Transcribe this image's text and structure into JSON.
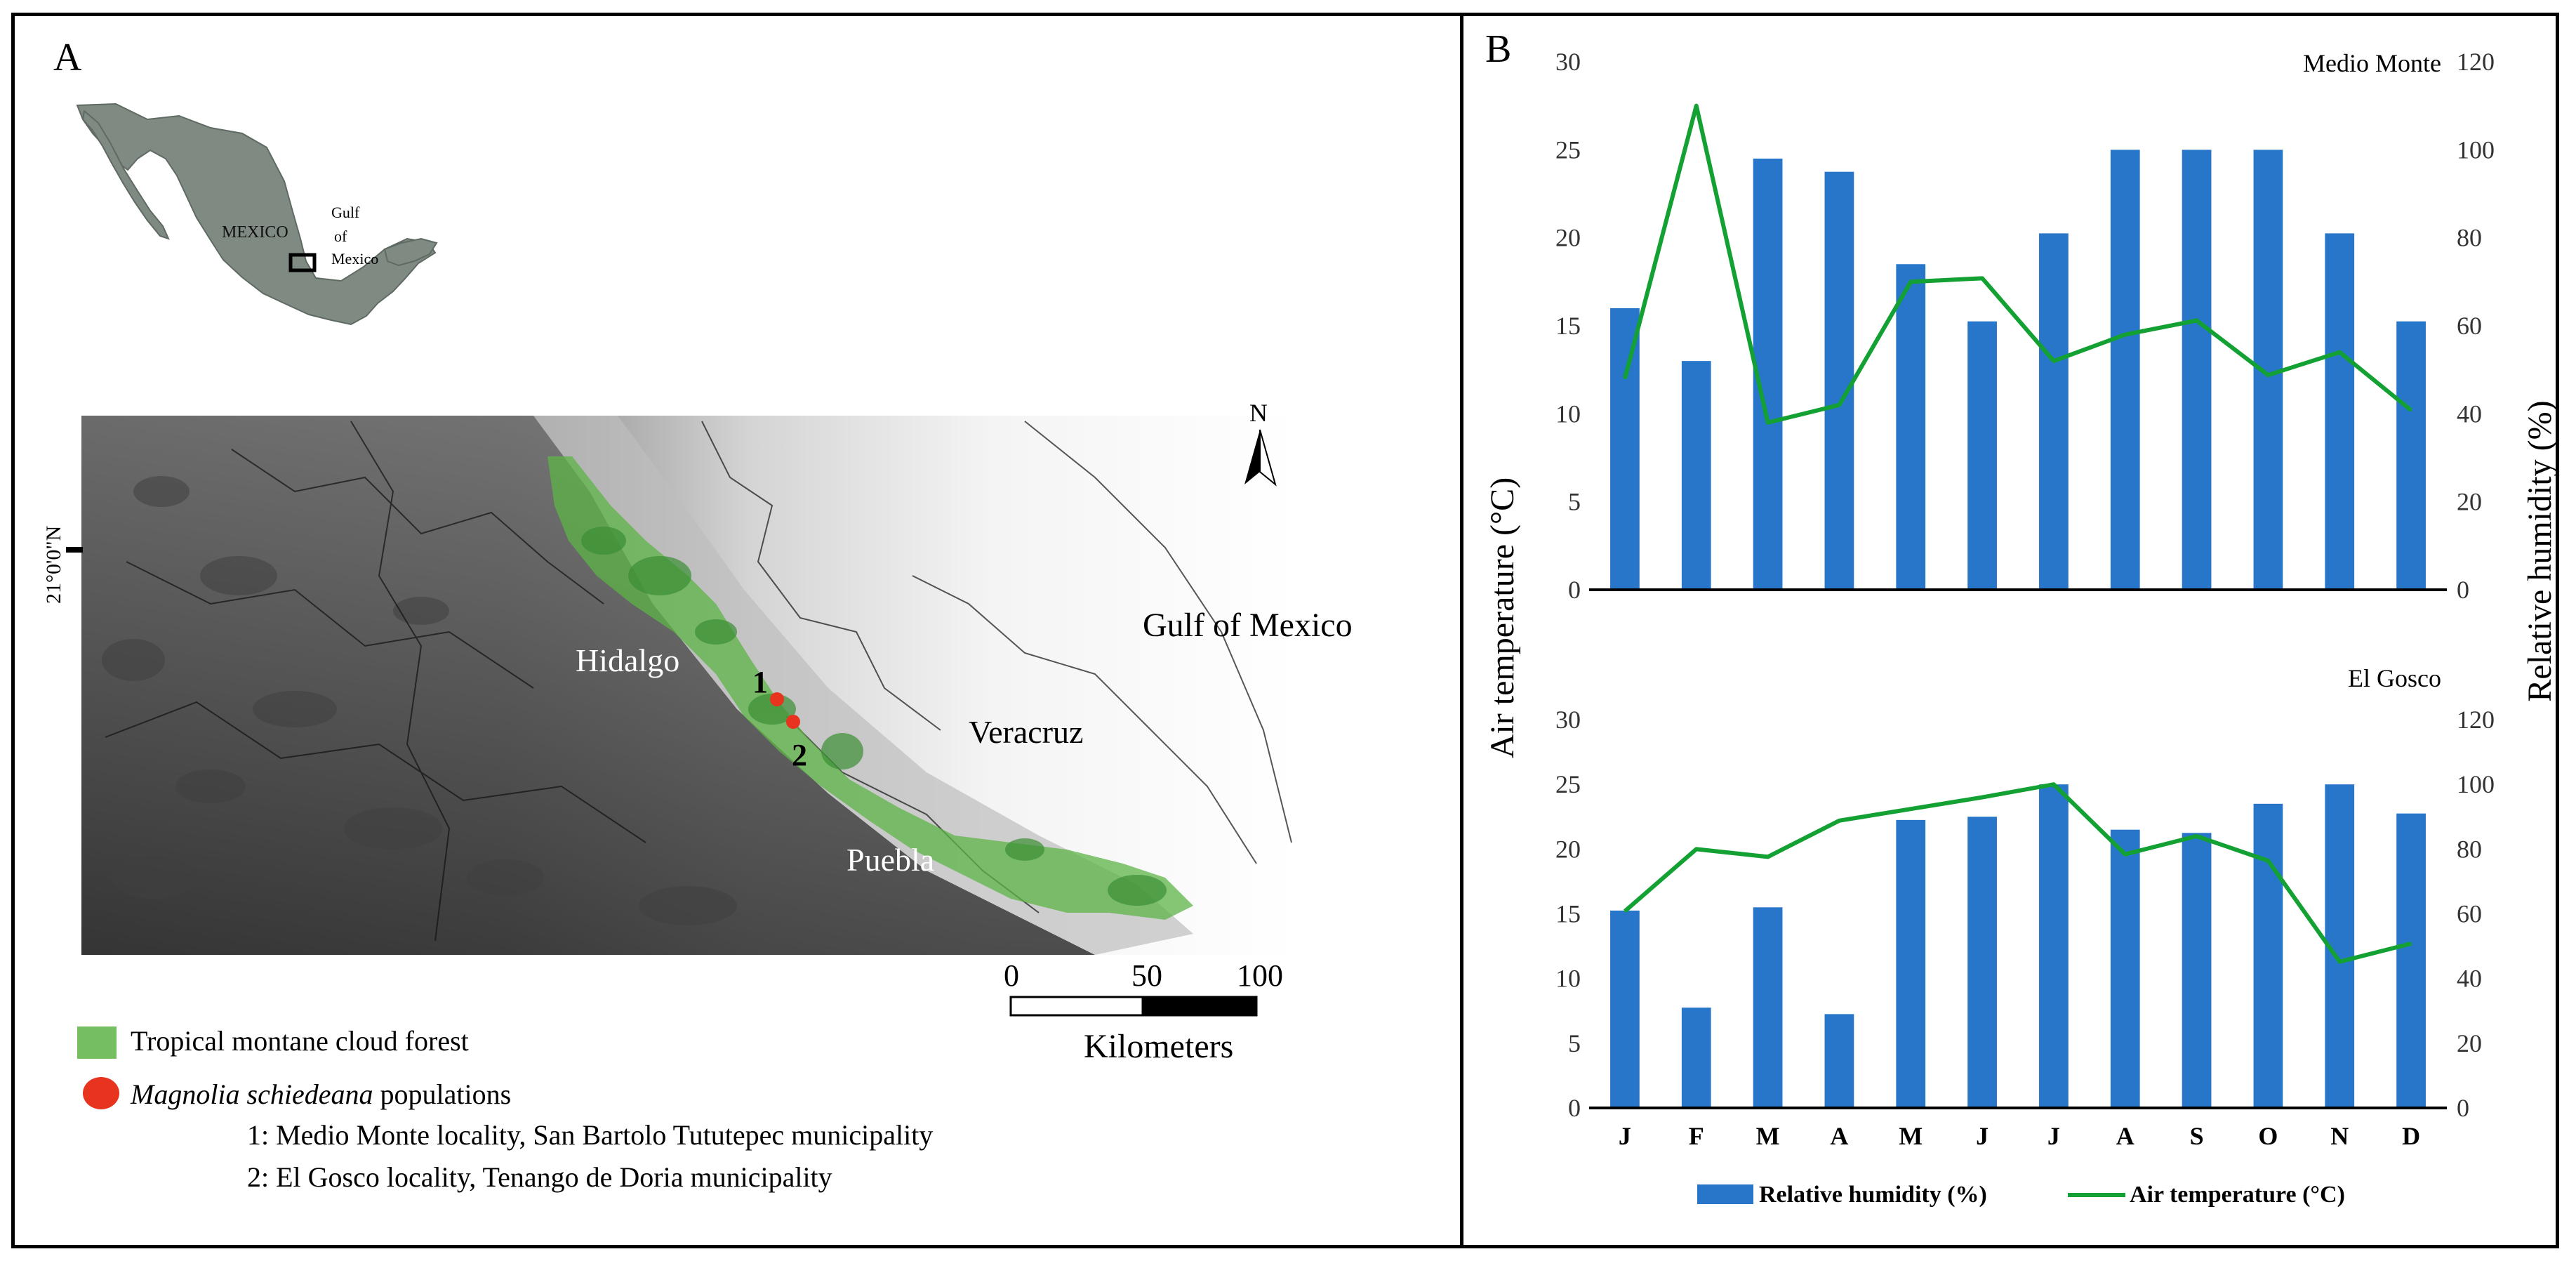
{
  "panel_a": {
    "label": "A",
    "inset": {
      "country": "MEXICO",
      "gulf_lines": [
        "Gulf",
        "of",
        "Mexico"
      ]
    },
    "map": {
      "states": [
        "Hidalgo",
        "Veracruz",
        "Puebla"
      ],
      "gulf": "Gulf of Mexico",
      "latitude_label": "21°0'0\"N",
      "north": "N",
      "site_numbers": [
        "1",
        "2"
      ]
    },
    "scale_bar": {
      "ticks": [
        "0",
        "50",
        "100"
      ],
      "unit": "Kilometers"
    },
    "legend": {
      "forest": "Tropical montane cloud forest",
      "populations_italic": "Magnolia schiedeana",
      "populations_rest": " populations",
      "site1": "1: Medio Monte locality, San Bartolo Tututepec municipality",
      "site2": "2: El Gosco locality, Tenango de Doria municipality"
    },
    "colors": {
      "forest": "#5db447",
      "population": "#e8331e"
    }
  },
  "panel_b": {
    "label": "B",
    "y_left_label": "Air temperature (°C)",
    "y_right_label": "Relative humidity  (%)",
    "legend": {
      "bars": "Relative humidity (%)",
      "line": "Air temperature (°C)"
    },
    "colors": {
      "bar": "#2876c9",
      "line": "#13a133"
    }
  },
  "chart_data": [
    {
      "type": "bar",
      "title": "Medio Monte",
      "categories": [
        "J",
        "F",
        "M",
        "A",
        "M",
        "J",
        "J",
        "A",
        "S",
        "O",
        "N",
        "D"
      ],
      "ylim": [
        0,
        30
      ],
      "y2lim": [
        0,
        120
      ],
      "yticks": [
        "0",
        "5",
        "10",
        "15",
        "20",
        "25",
        "30"
      ],
      "y2ticks": [
        "0",
        "20",
        "40",
        "60",
        "80",
        "100",
        "120"
      ],
      "series": [
        {
          "name": "Relative humidity (%)",
          "axis": "right",
          "kind": "bar",
          "values": [
            64,
            52,
            98,
            95,
            74,
            61,
            81,
            100,
            100,
            100,
            81,
            61
          ]
        },
        {
          "name": "Air temperature (°C)",
          "axis": "left",
          "kind": "line",
          "values": [
            12,
            27.5,
            9.5,
            10.5,
            17.5,
            17.7,
            13,
            14.5,
            15.3,
            12.2,
            13.5,
            10.2
          ]
        }
      ]
    },
    {
      "type": "bar",
      "title": "El Gosco",
      "categories": [
        "J",
        "F",
        "M",
        "A",
        "M",
        "J",
        "J",
        "A",
        "S",
        "O",
        "N",
        "D"
      ],
      "ylim": [
        0,
        30
      ],
      "y2lim": [
        0,
        120
      ],
      "yticks": [
        "0",
        "5",
        "10",
        "15",
        "20",
        "25",
        "30"
      ],
      "y2ticks": [
        "0",
        "20",
        "40",
        "60",
        "80",
        "100",
        "120"
      ],
      "series": [
        {
          "name": "Relative humidity (%)",
          "axis": "right",
          "kind": "bar",
          "values": [
            61,
            31,
            62,
            29,
            89,
            90,
            100,
            86,
            85,
            94,
            100,
            91
          ]
        },
        {
          "name": "Air temperature (°C)",
          "axis": "left",
          "kind": "line",
          "values": [
            15.2,
            20,
            19.4,
            22.2,
            23.1,
            24,
            25,
            19.6,
            21,
            19.1,
            11.3,
            12.7
          ]
        }
      ]
    }
  ]
}
